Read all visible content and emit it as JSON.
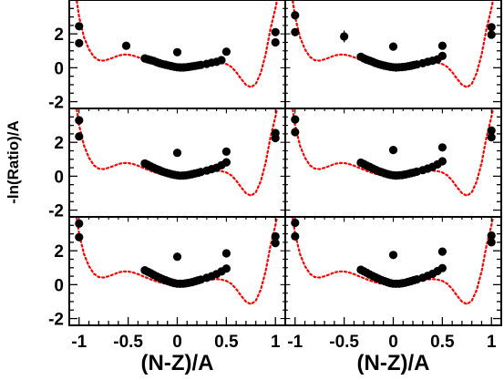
{
  "chart_data": {
    "type": "scatter",
    "layout": "3x2 panel grid, shared axes",
    "xlabel": "(N-Z)/A",
    "ylabel": "-ln(Ratio)/A",
    "xlim": [
      -1.1,
      1.1
    ],
    "ylim": [
      -2.4,
      4.0
    ],
    "x_ticks": [
      -1,
      -0.5,
      0,
      0.5,
      1
    ],
    "x_tick_labels": [
      "-1",
      "-0.5",
      "0",
      "0.5",
      "1"
    ],
    "y_ticks": [
      -2,
      0,
      2
    ],
    "y_tick_labels": [
      "-2",
      "0",
      "2"
    ],
    "marker_color": "#000000",
    "fit_color": "#ff0000",
    "fit_style": "dotted",
    "panels": [
      {
        "points": [
          [
            -1,
            2.45
          ],
          [
            -1,
            1.45
          ],
          [
            -0.52,
            1.3
          ],
          [
            -0.33,
            0.55
          ],
          [
            -0.3,
            0.5
          ],
          [
            -0.27,
            0.45
          ],
          [
            -0.24,
            0.4
          ],
          [
            -0.21,
            0.33
          ],
          [
            -0.18,
            0.27
          ],
          [
            -0.15,
            0.22
          ],
          [
            -0.12,
            0.18
          ],
          [
            -0.09,
            0.14
          ],
          [
            -0.06,
            0.1
          ],
          [
            -0.03,
            0.06
          ],
          [
            0,
            0.92
          ],
          [
            0,
            0.03
          ],
          [
            0.03,
            0.02
          ],
          [
            0.06,
            0.02
          ],
          [
            0.09,
            0.03
          ],
          [
            0.12,
            0.05
          ],
          [
            0.15,
            0.08
          ],
          [
            0.18,
            0.11
          ],
          [
            0.21,
            0.14
          ],
          [
            0.24,
            0.17
          ],
          [
            0.3,
            0.23
          ],
          [
            0.35,
            0.3
          ],
          [
            0.4,
            0.35
          ],
          [
            0.45,
            0.45
          ],
          [
            0.5,
            0.95
          ],
          [
            1,
            2.1
          ],
          [
            1,
            1.5
          ]
        ],
        "error_bars": []
      },
      {
        "points": [
          [
            -1,
            3.1
          ],
          [
            -1,
            2.1
          ],
          [
            -0.5,
            1.85
          ],
          [
            -0.33,
            0.65
          ],
          [
            -0.3,
            0.55
          ],
          [
            -0.27,
            0.48
          ],
          [
            -0.24,
            0.42
          ],
          [
            -0.21,
            0.35
          ],
          [
            -0.18,
            0.28
          ],
          [
            -0.15,
            0.22
          ],
          [
            -0.12,
            0.17
          ],
          [
            -0.09,
            0.13
          ],
          [
            -0.06,
            0.09
          ],
          [
            -0.03,
            0.05
          ],
          [
            0,
            1.25
          ],
          [
            0,
            0.03
          ],
          [
            0.03,
            0.02
          ],
          [
            0.06,
            0.03
          ],
          [
            0.09,
            0.04
          ],
          [
            0.12,
            0.06
          ],
          [
            0.15,
            0.09
          ],
          [
            0.18,
            0.12
          ],
          [
            0.21,
            0.16
          ],
          [
            0.24,
            0.2
          ],
          [
            0.3,
            0.27
          ],
          [
            0.35,
            0.35
          ],
          [
            0.4,
            0.42
          ],
          [
            0.45,
            0.5
          ],
          [
            0.5,
            0.7
          ],
          [
            0.5,
            1.3
          ],
          [
            1,
            2.4
          ],
          [
            1,
            1.95
          ]
        ],
        "error_bars": [
          {
            "x": -0.5,
            "y": 1.85,
            "err": 0.35
          }
        ]
      },
      {
        "points": [
          [
            -1,
            3.3
          ],
          [
            -1,
            2.35
          ],
          [
            -0.33,
            0.75
          ],
          [
            -0.3,
            0.67
          ],
          [
            -0.27,
            0.58
          ],
          [
            -0.24,
            0.5
          ],
          [
            -0.21,
            0.42
          ],
          [
            -0.18,
            0.35
          ],
          [
            -0.15,
            0.28
          ],
          [
            -0.12,
            0.22
          ],
          [
            -0.09,
            0.17
          ],
          [
            -0.06,
            0.12
          ],
          [
            -0.03,
            0.08
          ],
          [
            0,
            1.38
          ],
          [
            0,
            0.05
          ],
          [
            0.03,
            0.03
          ],
          [
            0.06,
            0.04
          ],
          [
            0.09,
            0.05
          ],
          [
            0.12,
            0.08
          ],
          [
            0.15,
            0.12
          ],
          [
            0.18,
            0.16
          ],
          [
            0.21,
            0.2
          ],
          [
            0.24,
            0.25
          ],
          [
            0.3,
            0.33
          ],
          [
            0.35,
            0.42
          ],
          [
            0.4,
            0.5
          ],
          [
            0.45,
            0.65
          ],
          [
            0.5,
            0.82
          ],
          [
            0.5,
            1.45
          ],
          [
            1,
            2.55
          ],
          [
            1,
            2.25
          ]
        ],
        "error_bars": []
      },
      {
        "points": [
          [
            -1,
            3.35
          ],
          [
            -1,
            2.6
          ],
          [
            -0.33,
            0.8
          ],
          [
            -0.3,
            0.72
          ],
          [
            -0.27,
            0.63
          ],
          [
            -0.24,
            0.55
          ],
          [
            -0.21,
            0.46
          ],
          [
            -0.18,
            0.38
          ],
          [
            -0.15,
            0.3
          ],
          [
            -0.12,
            0.24
          ],
          [
            -0.09,
            0.18
          ],
          [
            -0.06,
            0.13
          ],
          [
            -0.03,
            0.08
          ],
          [
            0,
            1.55
          ],
          [
            0,
            0.05
          ],
          [
            0.03,
            0.04
          ],
          [
            0.06,
            0.05
          ],
          [
            0.09,
            0.07
          ],
          [
            0.12,
            0.1
          ],
          [
            0.15,
            0.14
          ],
          [
            0.18,
            0.18
          ],
          [
            0.21,
            0.22
          ],
          [
            0.24,
            0.27
          ],
          [
            0.3,
            0.36
          ],
          [
            0.35,
            0.45
          ],
          [
            0.4,
            0.55
          ],
          [
            0.45,
            0.7
          ],
          [
            0.5,
            0.88
          ],
          [
            0.5,
            1.7
          ],
          [
            1,
            2.7
          ],
          [
            1,
            2.3
          ]
        ],
        "error_bars": []
      },
      {
        "points": [
          [
            -1,
            3.6
          ],
          [
            -1,
            2.8
          ],
          [
            -0.33,
            0.85
          ],
          [
            -0.3,
            0.76
          ],
          [
            -0.27,
            0.67
          ],
          [
            -0.24,
            0.58
          ],
          [
            -0.21,
            0.49
          ],
          [
            -0.18,
            0.41
          ],
          [
            -0.15,
            0.33
          ],
          [
            -0.12,
            0.26
          ],
          [
            -0.09,
            0.2
          ],
          [
            -0.06,
            0.14
          ],
          [
            -0.03,
            0.09
          ],
          [
            0,
            1.65
          ],
          [
            0,
            0.06
          ],
          [
            0.03,
            0.05
          ],
          [
            0.06,
            0.06
          ],
          [
            0.09,
            0.08
          ],
          [
            0.12,
            0.11
          ],
          [
            0.15,
            0.15
          ],
          [
            0.18,
            0.2
          ],
          [
            0.21,
            0.25
          ],
          [
            0.24,
            0.3
          ],
          [
            0.3,
            0.4
          ],
          [
            0.35,
            0.5
          ],
          [
            0.4,
            0.62
          ],
          [
            0.45,
            0.78
          ],
          [
            0.5,
            0.95
          ],
          [
            0.5,
            1.85
          ],
          [
            1,
            2.85
          ],
          [
            1,
            2.45
          ]
        ],
        "error_bars": []
      },
      {
        "points": [
          [
            -1,
            3.65
          ],
          [
            -1,
            2.85
          ],
          [
            -0.33,
            0.88
          ],
          [
            -0.3,
            0.79
          ],
          [
            -0.27,
            0.7
          ],
          [
            -0.24,
            0.6
          ],
          [
            -0.21,
            0.51
          ],
          [
            -0.18,
            0.43
          ],
          [
            -0.15,
            0.35
          ],
          [
            -0.12,
            0.27
          ],
          [
            -0.09,
            0.21
          ],
          [
            -0.06,
            0.15
          ],
          [
            -0.03,
            0.09
          ],
          [
            0,
            1.75
          ],
          [
            0,
            0.06
          ],
          [
            0.03,
            0.05
          ],
          [
            0.06,
            0.06
          ],
          [
            0.09,
            0.08
          ],
          [
            0.12,
            0.11
          ],
          [
            0.15,
            0.16
          ],
          [
            0.18,
            0.21
          ],
          [
            0.21,
            0.26
          ],
          [
            0.24,
            0.31
          ],
          [
            0.3,
            0.41
          ],
          [
            0.35,
            0.52
          ],
          [
            0.4,
            0.64
          ],
          [
            0.45,
            0.8
          ],
          [
            0.5,
            0.98
          ],
          [
            0.5,
            1.95
          ],
          [
            1,
            2.9
          ],
          [
            1,
            2.5
          ]
        ],
        "error_bars": []
      }
    ],
    "fit_curve": {
      "x": [
        -1.05,
        -1.0,
        -0.95,
        -0.9,
        -0.85,
        -0.8,
        -0.75,
        -0.7,
        -0.65,
        -0.6,
        -0.55,
        -0.5,
        -0.45,
        -0.4,
        -0.35,
        -0.3,
        -0.25,
        -0.2,
        -0.15,
        -0.1,
        -0.05,
        0,
        0.05,
        0.1,
        0.15,
        0.2,
        0.25,
        0.3,
        0.35,
        0.4,
        0.45,
        0.5,
        0.55,
        0.6,
        0.65,
        0.7,
        0.75,
        0.8,
        0.85,
        0.9,
        0.95,
        1.0,
        1.05
      ],
      "y": [
        5.0,
        3.0,
        1.8,
        1.1,
        0.65,
        0.45,
        0.42,
        0.5,
        0.6,
        0.72,
        0.78,
        0.78,
        0.72,
        0.62,
        0.5,
        0.38,
        0.27,
        0.17,
        0.09,
        0.03,
        0.0,
        -0.01,
        0.0,
        0.03,
        0.08,
        0.14,
        0.2,
        0.26,
        0.31,
        0.33,
        0.3,
        0.22,
        0.05,
        -0.25,
        -0.65,
        -1.0,
        -1.15,
        -0.95,
        -0.3,
        0.8,
        2.3,
        3.5,
        5.0
      ]
    }
  }
}
